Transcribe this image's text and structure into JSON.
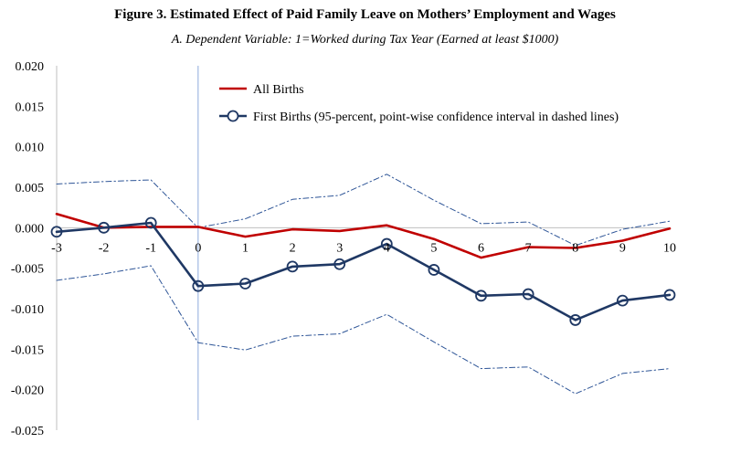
{
  "figure": {
    "title": "Figure 3. Estimated Effect of Paid Family Leave on Mothers’ Employment and Wages",
    "subtitle": "A.   Dependent Variable: 1=Worked during Tax Year (Earned at least $1000)"
  },
  "colors": {
    "all_births": "#c00000",
    "first_births": "#1f3864",
    "ci": "#2e5597",
    "axis": "#bfbfbf",
    "event_line": "#8faadc",
    "marker_fill": "#ffffff"
  },
  "chart_data": {
    "type": "line",
    "title": "Figure 3. Estimated Effect of Paid Family Leave on Mothers’ Employment and Wages",
    "subtitle": "A.   Dependent Variable: 1=Worked during Tax Year (Earned at least $1000)",
    "xlabel": "",
    "ylabel": "",
    "x": [
      -3,
      -2,
      -1,
      0,
      1,
      2,
      3,
      4,
      5,
      6,
      7,
      8,
      9,
      10
    ],
    "x_tick_labels": [
      "-3",
      "-2",
      "-1",
      "0",
      "1",
      "2",
      "3",
      "4",
      "5",
      "6",
      "7",
      "8",
      "9",
      "10"
    ],
    "ylim": [
      -0.025,
      0.02
    ],
    "y_ticks": [
      0.02,
      0.015,
      0.01,
      0.005,
      0.0,
      -0.005,
      -0.01,
      -0.015,
      -0.02,
      -0.025
    ],
    "y_tick_labels": [
      "0.020",
      "0.015",
      "0.010",
      "0.005",
      "0.000",
      "-0.005",
      "-0.010",
      "-0.015",
      "-0.020",
      "-0.025"
    ],
    "grid": false,
    "event_line_x": 0,
    "legend_position": "top-right",
    "series": [
      {
        "name": "All Births",
        "style": "solid",
        "markers": false,
        "values": [
          0.0017,
          0.0,
          0.0001,
          0.0001,
          -0.0011,
          -0.0002,
          -0.0004,
          0.0003,
          -0.0014,
          -0.0037,
          -0.0024,
          -0.0025,
          -0.0016,
          -0.0001
        ]
      },
      {
        "name": "First Births (95-percent, point-wise confidence interval in dashed lines)",
        "style": "solid",
        "markers": true,
        "values": [
          -0.0005,
          0.0,
          0.0006,
          -0.0072,
          -0.0069,
          -0.0048,
          -0.0045,
          -0.002,
          -0.0052,
          -0.0084,
          -0.0082,
          -0.0114,
          -0.009,
          -0.0083
        ]
      },
      {
        "name": "First Births 95% CI upper",
        "style": "dashdot",
        "markers": false,
        "values": [
          0.0054,
          0.0057,
          0.0059,
          0.0,
          0.0011,
          0.0035,
          0.004,
          0.0066,
          0.0034,
          0.0005,
          0.0007,
          -0.0022,
          -0.0002,
          0.0008
        ]
      },
      {
        "name": "First Births 95% CI lower",
        "style": "dashdot",
        "markers": false,
        "values": [
          -0.0065,
          -0.0057,
          -0.0047,
          -0.0142,
          -0.0151,
          -0.0134,
          -0.0131,
          -0.0107,
          -0.0141,
          -0.0174,
          -0.0172,
          -0.0205,
          -0.018,
          -0.0174
        ]
      }
    ]
  }
}
